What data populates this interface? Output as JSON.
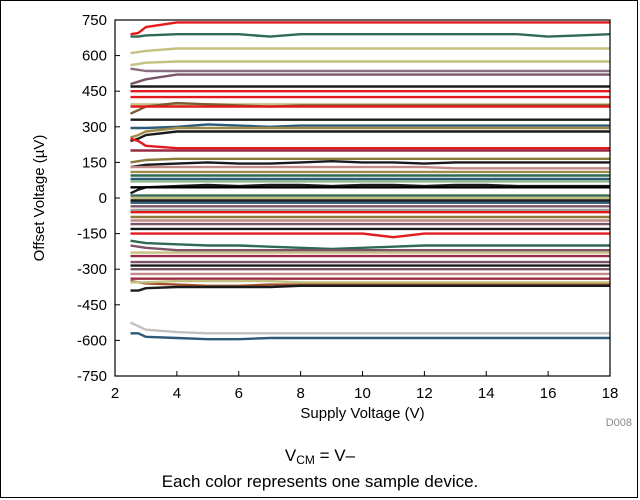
{
  "chart_data": {
    "type": "line",
    "title": "",
    "xlabel": "Supply Voltage (V)",
    "ylabel": "Offset Voltage (µV)",
    "xlim": [
      2,
      18
    ],
    "ylim": [
      -750,
      750
    ],
    "x_ticks": [
      2,
      4,
      6,
      8,
      10,
      12,
      14,
      16,
      18
    ],
    "y_ticks": [
      750,
      600,
      450,
      300,
      150,
      0,
      -150,
      -300,
      -450,
      -600,
      -750
    ],
    "grid": false,
    "legend": "none",
    "x": [
      2.5,
      2.75,
      3,
      4,
      5,
      6,
      7,
      8,
      9,
      10,
      11,
      12,
      13,
      14,
      15,
      16,
      17,
      18
    ],
    "series": [
      {
        "color": "#e31a1c",
        "values": [
          690,
          695,
          720,
          740,
          740,
          740,
          740,
          740,
          740,
          740,
          740,
          740,
          740,
          740,
          740,
          740,
          740,
          740
        ]
      },
      {
        "color": "#2e6b52",
        "values": [
          680,
          680,
          685,
          690,
          690,
          690,
          680,
          690,
          690,
          690,
          690,
          690,
          690,
          690,
          690,
          680,
          685,
          690
        ]
      },
      {
        "color": "#c5c080",
        "values": [
          610,
          615,
          620,
          630,
          630,
          630,
          630,
          630,
          630,
          630,
          630,
          630,
          630,
          630,
          630,
          630,
          630,
          630
        ]
      },
      {
        "color": "#c5c080",
        "values": [
          560,
          565,
          570,
          575,
          575,
          575,
          575,
          575,
          575,
          575,
          575,
          575,
          575,
          575,
          575,
          575,
          575,
          575
        ]
      },
      {
        "color": "#8a6d7e",
        "values": [
          545,
          540,
          535,
          535,
          535,
          535,
          535,
          535,
          535,
          535,
          535,
          535,
          535,
          535,
          535,
          535,
          535,
          535
        ]
      },
      {
        "color": "#7b5468",
        "values": [
          480,
          490,
          500,
          520,
          520,
          520,
          520,
          520,
          520,
          520,
          520,
          520,
          520,
          520,
          520,
          520,
          520,
          520
        ]
      },
      {
        "color": "#1a1a1a",
        "values": [
          470,
          470,
          470,
          470,
          470,
          470,
          470,
          470,
          470,
          470,
          470,
          470,
          470,
          470,
          470,
          470,
          470,
          470
        ]
      },
      {
        "color": "#e31a1c",
        "values": [
          450,
          450,
          450,
          450,
          450,
          450,
          450,
          450,
          450,
          450,
          450,
          450,
          450,
          450,
          450,
          450,
          450,
          450
        ]
      },
      {
        "color": "#e31a1c",
        "values": [
          425,
          425,
          425,
          425,
          425,
          425,
          425,
          425,
          425,
          425,
          425,
          425,
          425,
          425,
          425,
          425,
          425,
          425
        ]
      },
      {
        "color": "#c5c080",
        "values": [
          395,
          395,
          395,
          395,
          395,
          395,
          395,
          395,
          395,
          395,
          395,
          395,
          395,
          395,
          395,
          395,
          395,
          395
        ]
      },
      {
        "color": "#7a5c2e",
        "values": [
          355,
          370,
          385,
          400,
          395,
          390,
          385,
          390,
          390,
          390,
          390,
          390,
          390,
          390,
          390,
          390,
          390,
          390
        ]
      },
      {
        "color": "#e31a1c",
        "values": [
          385,
          385,
          385,
          385,
          385,
          385,
          385,
          385,
          385,
          385,
          385,
          385,
          385,
          385,
          385,
          385,
          385,
          385
        ]
      },
      {
        "color": "#1a1a1a",
        "values": [
          330,
          330,
          330,
          330,
          330,
          330,
          330,
          330,
          330,
          330,
          330,
          330,
          330,
          330,
          330,
          330,
          330,
          330
        ]
      },
      {
        "color": "#2d5a78",
        "values": [
          295,
          295,
          295,
          300,
          310,
          305,
          300,
          305,
          305,
          305,
          305,
          305,
          305,
          305,
          305,
          305,
          305,
          305
        ]
      },
      {
        "color": "#a08a4a",
        "values": [
          255,
          265,
          280,
          295,
          295,
          295,
          295,
          295,
          295,
          295,
          295,
          295,
          295,
          295,
          295,
          295,
          295,
          295
        ]
      },
      {
        "color": "#1a1a1a",
        "values": [
          240,
          250,
          265,
          280,
          280,
          280,
          280,
          280,
          280,
          280,
          280,
          280,
          280,
          280,
          280,
          280,
          280,
          280
        ]
      },
      {
        "color": "#e31a1c",
        "values": [
          250,
          240,
          220,
          210,
          210,
          210,
          210,
          210,
          210,
          210,
          210,
          210,
          210,
          210,
          210,
          210,
          210,
          210
        ]
      },
      {
        "color": "#9b2b45",
        "values": [
          200,
          200,
          200,
          200,
          200,
          200,
          200,
          200,
          200,
          200,
          200,
          200,
          200,
          200,
          200,
          200,
          200,
          200
        ]
      },
      {
        "color": "#8b7a3a",
        "values": [
          150,
          155,
          160,
          165,
          165,
          165,
          165,
          165,
          165,
          165,
          165,
          165,
          165,
          165,
          165,
          165,
          165,
          165
        ]
      },
      {
        "color": "#1a1a1a",
        "values": [
          130,
          135,
          140,
          145,
          150,
          145,
          145,
          150,
          155,
          150,
          150,
          145,
          150,
          150,
          150,
          150,
          150,
          150
        ]
      },
      {
        "color": "#c48a8a",
        "values": [
          130,
          130,
          130,
          130,
          130,
          130,
          130,
          130,
          130,
          130,
          130,
          130,
          125,
          125,
          125,
          125,
          125,
          125
        ]
      },
      {
        "color": "#a08a4a",
        "values": [
          110,
          110,
          110,
          110,
          110,
          110,
          110,
          110,
          110,
          110,
          110,
          110,
          110,
          110,
          110,
          110,
          110,
          110
        ]
      },
      {
        "color": "#2e6b52",
        "values": [
          95,
          95,
          95,
          95,
          95,
          95,
          95,
          95,
          95,
          95,
          95,
          95,
          95,
          95,
          95,
          95,
          95,
          95
        ]
      },
      {
        "color": "#2d5a78",
        "values": [
          80,
          80,
          80,
          80,
          80,
          80,
          80,
          80,
          80,
          80,
          80,
          80,
          80,
          80,
          80,
          80,
          80,
          80
        ]
      },
      {
        "color": "#8fbc8f",
        "values": [
          70,
          70,
          70,
          70,
          70,
          70,
          70,
          70,
          70,
          70,
          70,
          70,
          70,
          70,
          70,
          70,
          70,
          70
        ]
      },
      {
        "color": "#1a1a1a",
        "values": [
          20,
          35,
          45,
          50,
          55,
          50,
          55,
          55,
          50,
          55,
          55,
          50,
          55,
          55,
          50,
          50,
          50,
          50
        ]
      },
      {
        "color": "#000000",
        "values": [
          45,
          45,
          45,
          45,
          45,
          45,
          45,
          45,
          45,
          45,
          45,
          45,
          45,
          45,
          45,
          45,
          45,
          45
        ]
      },
      {
        "color": "#2e6b52",
        "values": [
          10,
          10,
          10,
          10,
          10,
          10,
          10,
          10,
          10,
          10,
          10,
          10,
          10,
          10,
          10,
          10,
          10,
          10
        ]
      },
      {
        "color": "#c5c080",
        "values": [
          0,
          0,
          0,
          0,
          0,
          0,
          0,
          0,
          0,
          0,
          0,
          0,
          0,
          0,
          0,
          0,
          0,
          0
        ]
      },
      {
        "color": "#1a1a1a",
        "values": [
          -10,
          -10,
          -10,
          -10,
          -10,
          -10,
          -10,
          -10,
          -10,
          -10,
          -10,
          -10,
          -10,
          -10,
          -10,
          -10,
          -10,
          -10
        ]
      },
      {
        "color": "#2d5a78",
        "values": [
          -20,
          -20,
          -20,
          -20,
          -20,
          -20,
          -20,
          -20,
          -20,
          -20,
          -20,
          -20,
          -20,
          -20,
          -20,
          -20,
          -20,
          -20
        ]
      },
      {
        "color": "#7b5468",
        "values": [
          -35,
          -35,
          -35,
          -35,
          -35,
          -35,
          -35,
          -35,
          -35,
          -35,
          -35,
          -35,
          -35,
          -35,
          -35,
          -35,
          -35,
          -35
        ]
      },
      {
        "color": "#9aa0a0",
        "values": [
          -50,
          -50,
          -50,
          -50,
          -50,
          -50,
          -50,
          -50,
          -50,
          -50,
          -50,
          -50,
          -50,
          -50,
          -50,
          -50,
          -50,
          -50
        ]
      },
      {
        "color": "#e31a1c",
        "values": [
          -60,
          -60,
          -60,
          -60,
          -60,
          -60,
          -60,
          -60,
          -60,
          -60,
          -60,
          -60,
          -60,
          -60,
          -60,
          -60,
          -60,
          -60
        ]
      },
      {
        "color": "#8b7a3a",
        "values": [
          -80,
          -80,
          -80,
          -80,
          -80,
          -80,
          -80,
          -80,
          -80,
          -80,
          -80,
          -80,
          -80,
          -80,
          -80,
          -80,
          -80,
          -80
        ]
      },
      {
        "color": "#c48a8a",
        "values": [
          -95,
          -95,
          -95,
          -95,
          -95,
          -95,
          -95,
          -95,
          -95,
          -95,
          -95,
          -95,
          -95,
          -95,
          -95,
          -95,
          -95,
          -95
        ]
      },
      {
        "color": "#7b5468",
        "values": [
          -110,
          -110,
          -110,
          -110,
          -110,
          -110,
          -110,
          -110,
          -110,
          -110,
          -110,
          -110,
          -110,
          -110,
          -110,
          -110,
          -110,
          -110
        ]
      },
      {
        "color": "#1a1a1a",
        "values": [
          -130,
          -130,
          -130,
          -130,
          -130,
          -130,
          -130,
          -130,
          -130,
          -130,
          -130,
          -130,
          -130,
          -130,
          -130,
          -130,
          -130,
          -130
        ]
      },
      {
        "color": "#e31a1c",
        "values": [
          -150,
          -150,
          -150,
          -150,
          -150,
          -150,
          -150,
          -150,
          -150,
          -150,
          -165,
          -150,
          -150,
          -150,
          -150,
          -150,
          -150,
          -150
        ]
      },
      {
        "color": "#2e6b52",
        "values": [
          -180,
          -185,
          -190,
          -195,
          -200,
          -200,
          -205,
          -210,
          -215,
          -210,
          -205,
          -200,
          -200,
          -200,
          -200,
          -200,
          -200,
          -200
        ]
      },
      {
        "color": "#7b5468",
        "values": [
          -200,
          -205,
          -210,
          -220,
          -220,
          -220,
          -220,
          -220,
          -220,
          -220,
          -220,
          -220,
          -220,
          -220,
          -220,
          -220,
          -220,
          -220
        ]
      },
      {
        "color": "#c5c080",
        "values": [
          -230,
          -230,
          -230,
          -230,
          -230,
          -230,
          -230,
          -230,
          -230,
          -230,
          -230,
          -230,
          -230,
          -230,
          -230,
          -230,
          -230,
          -230
        ]
      },
      {
        "color": "#9b2b45",
        "values": [
          -245,
          -245,
          -245,
          -245,
          -245,
          -245,
          -245,
          -245,
          -245,
          -245,
          -245,
          -245,
          -245,
          -245,
          -245,
          -245,
          -245,
          -245
        ]
      },
      {
        "color": "#7b5468",
        "values": [
          -270,
          -270,
          -270,
          -270,
          -270,
          -270,
          -270,
          -270,
          -270,
          -270,
          -270,
          -270,
          -270,
          -270,
          -270,
          -270,
          -270,
          -270
        ]
      },
      {
        "color": "#1a1a1a",
        "values": [
          -285,
          -285,
          -285,
          -285,
          -285,
          -285,
          -285,
          -285,
          -285,
          -285,
          -285,
          -285,
          -285,
          -285,
          -285,
          -285,
          -285,
          -285
        ]
      },
      {
        "color": "#7b5468",
        "values": [
          -300,
          -300,
          -300,
          -300,
          -300,
          -300,
          -300,
          -300,
          -300,
          -300,
          -300,
          -300,
          -300,
          -300,
          -300,
          -300,
          -300,
          -300
        ]
      },
      {
        "color": "#c48a8a",
        "values": [
          -320,
          -320,
          -320,
          -320,
          -320,
          -320,
          -320,
          -320,
          -320,
          -320,
          -320,
          -320,
          -320,
          -320,
          -320,
          -320,
          -320,
          -320
        ]
      },
      {
        "color": "#9b2b45",
        "values": [
          -340,
          -340,
          -340,
          -340,
          -340,
          -340,
          -340,
          -340,
          -340,
          -340,
          -340,
          -340,
          -340,
          -340,
          -340,
          -340,
          -340,
          -340
        ]
      },
      {
        "color": "#a0522d",
        "values": [
          -350,
          -355,
          -360,
          -365,
          -370,
          -370,
          -365,
          -365,
          -365,
          -365,
          -365,
          -365,
          -365,
          -365,
          -365,
          -365,
          -365,
          -365
        ]
      },
      {
        "color": "#c5c080",
        "values": [
          -355,
          -355,
          -355,
          -350,
          -350,
          -350,
          -350,
          -355,
          -355,
          -355,
          -355,
          -355,
          -355,
          -355,
          -355,
          -355,
          -355,
          -355
        ]
      },
      {
        "color": "#1a1a1a",
        "values": [
          -390,
          -390,
          -380,
          -375,
          -375,
          -375,
          -375,
          -370,
          -370,
          -370,
          -370,
          -370,
          -370,
          -370,
          -370,
          -370,
          -370,
          -370
        ]
      },
      {
        "color": "#c0c0c0",
        "values": [
          -525,
          -540,
          -555,
          -565,
          -570,
          -570,
          -570,
          -570,
          -570,
          -570,
          -570,
          -570,
          -570,
          -570,
          -570,
          -570,
          -570,
          -570
        ]
      },
      {
        "color": "#2d5a78",
        "values": [
          -570,
          -570,
          -585,
          -590,
          -595,
          -595,
          -590,
          -590,
          -590,
          -590,
          -590,
          -590,
          -590,
          -590,
          -590,
          -590,
          -590,
          -590
        ]
      }
    ],
    "figure_id": "D008",
    "condition": {
      "main": "V",
      "sub": "CM",
      "rest": " = V–"
    },
    "note": "Each color represents one sample device."
  }
}
